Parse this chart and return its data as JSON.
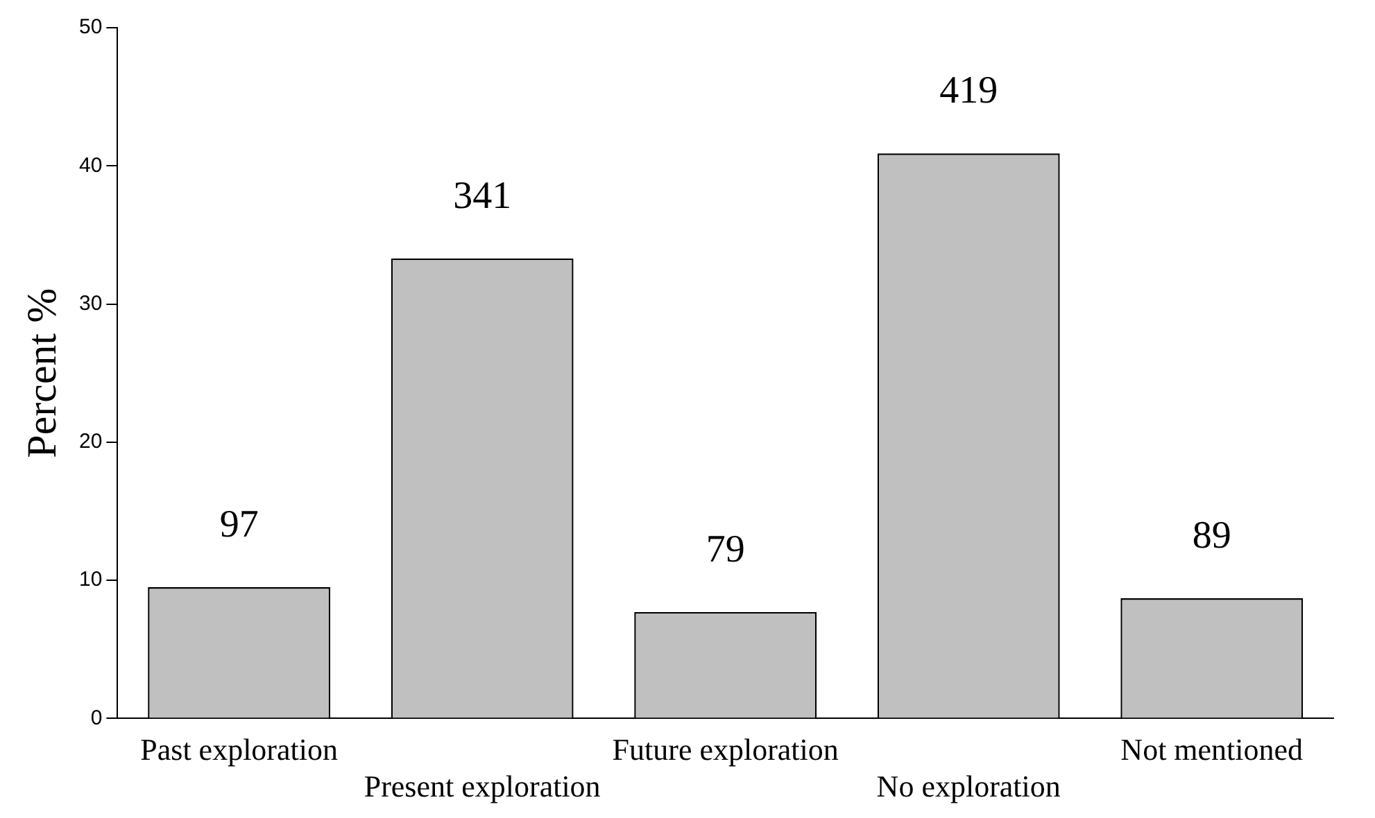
{
  "chart_data": {
    "type": "bar",
    "ylabel": "Percent %",
    "categories": [
      "Past exploration",
      "Present exploration",
      "Future exploration",
      "No exploration",
      "Not mentioned"
    ],
    "values": [
      9.5,
      33.3,
      7.7,
      40.9,
      8.7
    ],
    "annotations": [
      {
        "text": "97",
        "x": "Past exploration",
        "y": 9.5
      },
      {
        "text": "341",
        "x": "Present exploration",
        "y": 33.3
      },
      {
        "text": "79",
        "x": "Future exploration",
        "y": 7.7
      },
      {
        "text": "419",
        "x": "No exploration",
        "y": 40.9
      },
      {
        "text": "89",
        "x": "Not mentioned",
        "y": 8.7
      }
    ],
    "color": "#c0c0c0",
    "ylim": [
      0,
      50
    ],
    "yticks": [
      0,
      10,
      20,
      30,
      40,
      50
    ],
    "grid": false
  }
}
